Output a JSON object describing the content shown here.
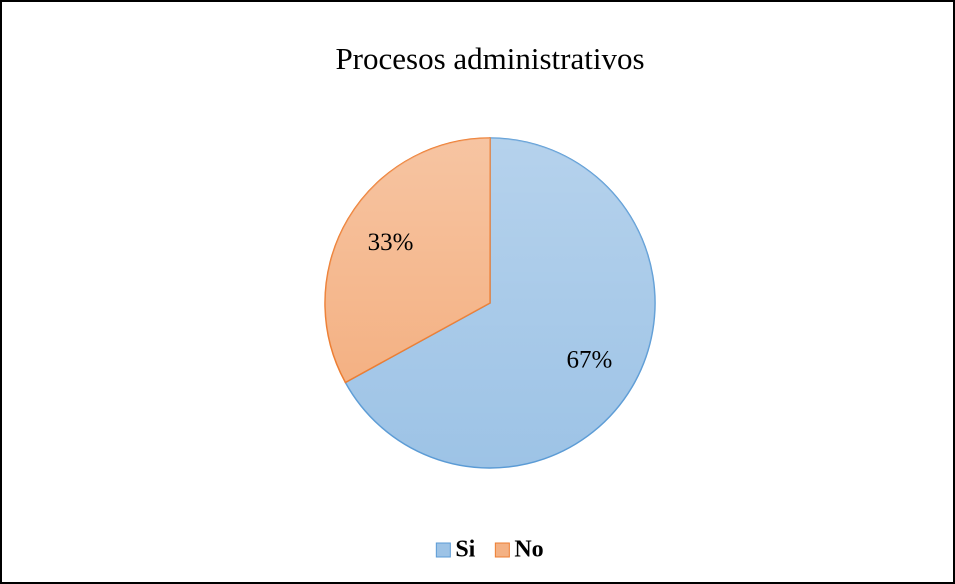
{
  "chart_data": {
    "type": "pie",
    "title": "Procesos administrativos",
    "categories": [
      "Si",
      "No"
    ],
    "values": [
      67,
      33
    ],
    "value_labels": [
      "67%",
      "33%"
    ],
    "colors": [
      "#9dc3e6",
      "#f4b183"
    ],
    "edgecolors": [
      "#5b9bd5",
      "#ed7d31"
    ],
    "legend": "bottom"
  }
}
